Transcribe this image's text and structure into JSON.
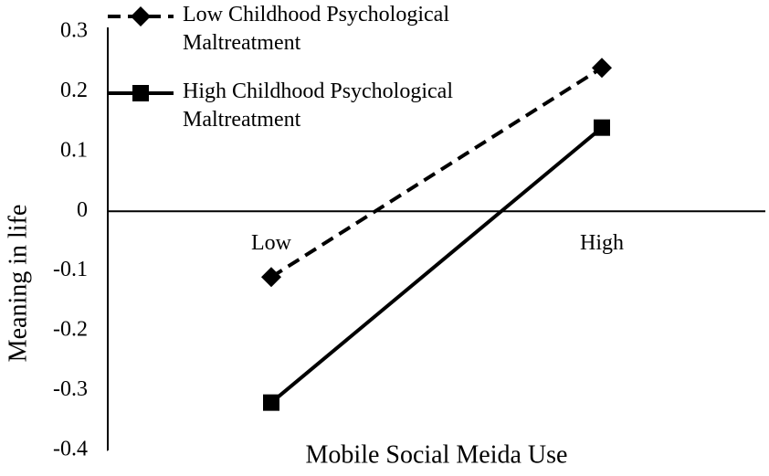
{
  "chart_data": {
    "type": "line",
    "x_label": "Mobile Social Meida Use",
    "y_label": "Meaning in life",
    "categories": [
      "Low",
      "High"
    ],
    "series": [
      {
        "name": "Low Childhood Psychological Maltreatment",
        "color": "#000000",
        "line_style": "dashed",
        "marker": "diamond",
        "values": [
          -0.11,
          0.24
        ]
      },
      {
        "name": "High Childhood Psychological Maltreatment",
        "color": "#000000",
        "line_style": "solid",
        "marker": "square",
        "values": [
          -0.32,
          0.14
        ]
      }
    ],
    "ylim": [
      -0.4,
      0.3
    ],
    "yticks": [
      -0.4,
      -0.3,
      -0.2,
      -0.1,
      0,
      0.1,
      0.2,
      0.3
    ],
    "legend": "top-left"
  }
}
